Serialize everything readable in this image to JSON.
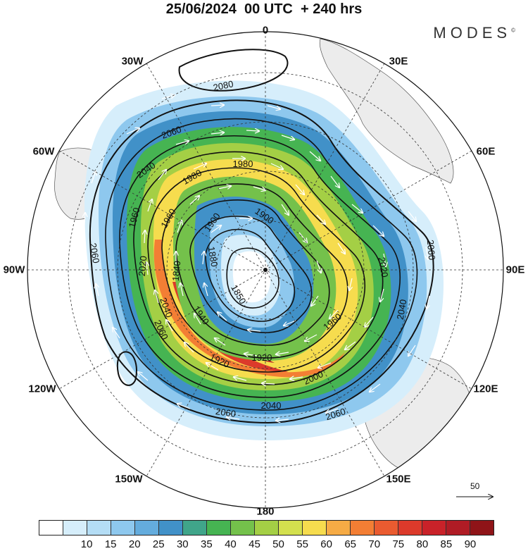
{
  "title": "25/06/2024  00 UTC  + 240 hrs",
  "brand": "MODES",
  "brand_mark": "©",
  "longitude_labels": [
    "0",
    "30E",
    "60E",
    "90E",
    "120E",
    "150E",
    "180",
    "150W",
    "120W",
    "90W",
    "60W",
    "30W"
  ],
  "contour_labels": [
    "2080",
    "2060",
    "2040",
    "1980",
    "1980",
    "1960",
    "1900",
    "1900",
    "1880",
    "1850",
    "1840",
    "2060",
    "2060",
    "2040",
    "2000",
    "1960",
    "2040",
    "1920",
    "1960",
    "1940",
    "2060",
    "2060",
    "2020",
    "2020",
    "2060",
    "2040",
    "1920"
  ],
  "vector_reference": "50",
  "colorbar": {
    "colors": [
      "#ffffff",
      "#d6eefb",
      "#b4ddf5",
      "#8ec8ee",
      "#64acdd",
      "#4191c8",
      "#40a58a",
      "#46b452",
      "#74c14b",
      "#a4cf45",
      "#d3e04e",
      "#f6dc4e",
      "#f6ab45",
      "#f37e34",
      "#ea5b30",
      "#dc3a2b",
      "#c92229",
      "#b01c25",
      "#8f1418"
    ],
    "labels": [
      "10",
      "15",
      "20",
      "25",
      "30",
      "35",
      "40",
      "45",
      "50",
      "55",
      "60",
      "65",
      "70",
      "75",
      "80",
      "85",
      "90"
    ]
  },
  "colors": {
    "land": "#ececec",
    "coast": "#555555",
    "contour": "#111111",
    "vector": "#ffffff"
  }
}
